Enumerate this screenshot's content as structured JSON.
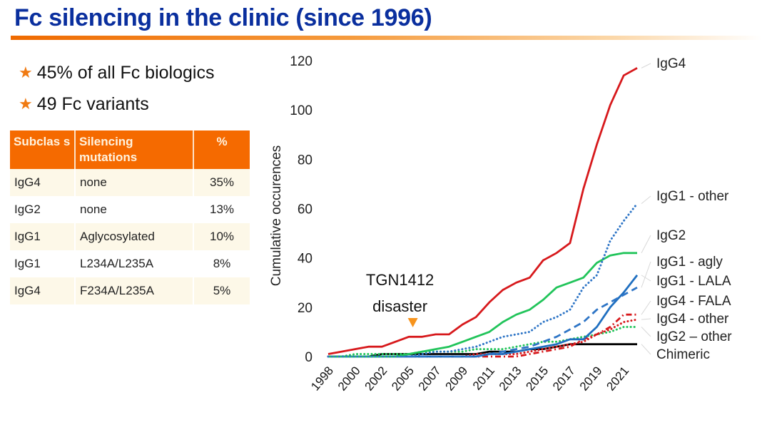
{
  "slide": {
    "title": "Fc silencing in the clinic (since 1996)",
    "bullets": [
      {
        "icon": "star-icon",
        "text": "45% of all Fc biologics"
      },
      {
        "icon": "star-icon",
        "text": "49 Fc variants"
      }
    ],
    "table": {
      "headers": [
        "Subclass",
        "Silencing mutations",
        "%"
      ],
      "header_display": [
        "Subclas s",
        "Silencing mutations",
        "%"
      ],
      "rows": [
        [
          "IgG4",
          "none",
          "35%"
        ],
        [
          "IgG2",
          "none",
          "13%"
        ],
        [
          "IgG1",
          "Aglycosylated",
          "10%"
        ],
        [
          "IgG1",
          "L234A/L235A",
          "8%"
        ],
        [
          "IgG4",
          "F234A/L235A",
          "5%"
        ]
      ],
      "header_color": "#f56a00"
    },
    "accent_colors": {
      "title": "#0a2f9e",
      "star": "#f07a12",
      "rule": "#ef6a00"
    }
  },
  "chart_data": {
    "type": "line",
    "title": "",
    "xlabel": "",
    "ylabel": "Cumulative occurences",
    "ylim": [
      0,
      120
    ],
    "yticks": [
      0,
      20,
      40,
      60,
      80,
      100,
      120
    ],
    "x_tick_labels": [
      "1998",
      "2000",
      "2002",
      "2005",
      "2007",
      "2009",
      "2011",
      "2013",
      "2015",
      "2017",
      "2019",
      "2021"
    ],
    "n_points": 24,
    "x_tick_every": 2,
    "grid": false,
    "legend": "right-end labels",
    "annotation": {
      "text_lines": [
        "TGN1412",
        "disaster"
      ],
      "marker": "down-triangle",
      "color": "#f7941d",
      "x_index": 6.3
    },
    "series": [
      {
        "name": "IgG4",
        "color": "#d7191c",
        "style": "solid",
        "values": [
          1,
          2,
          3,
          4,
          4,
          6,
          8,
          8,
          9,
          9,
          13,
          16,
          22,
          27,
          30,
          32,
          39,
          42,
          46,
          68,
          86,
          102,
          114,
          117
        ]
      },
      {
        "name": "IgG1 - other",
        "color": "#2e75c6",
        "style": "dotted",
        "values": [
          0,
          0,
          0,
          0,
          0,
          0,
          0,
          1,
          2,
          2,
          3,
          4,
          6,
          8,
          9,
          10,
          14,
          16,
          19,
          28,
          33,
          47,
          55,
          62
        ]
      },
      {
        "name": "IgG2",
        "color": "#21c45a",
        "style": "solid",
        "values": [
          0,
          0,
          0,
          0,
          0,
          0,
          1,
          2,
          3,
          4,
          6,
          8,
          10,
          14,
          17,
          19,
          23,
          28,
          30,
          32,
          38,
          41,
          42,
          42
        ]
      },
      {
        "name": "IgG1 - agly",
        "color": "#2e75c6",
        "style": "dashed",
        "values": [
          0,
          0,
          0,
          0,
          0,
          0,
          0,
          0,
          0,
          0,
          0,
          0,
          1,
          2,
          3,
          4,
          6,
          8,
          11,
          14,
          19,
          22,
          25,
          28
        ]
      },
      {
        "name": "IgG1 - LALA",
        "color": "#1f6fc0",
        "style": "solid",
        "values": [
          0,
          0,
          0,
          0,
          0,
          0,
          0,
          0,
          0,
          0,
          0,
          0,
          1,
          1,
          2,
          3,
          4,
          5,
          7,
          7,
          12,
          20,
          26,
          33
        ]
      },
      {
        "name": "IgG4 - FALA",
        "color": "#d7191c",
        "style": "dashdot",
        "values": [
          0,
          0,
          0,
          0,
          0,
          0,
          0,
          0,
          0,
          0,
          0,
          0,
          0,
          0,
          0,
          1,
          2,
          3,
          4,
          7,
          9,
          12,
          17,
          17
        ]
      },
      {
        "name": "IgG4 - other",
        "color": "#d7191c",
        "style": "dotted",
        "values": [
          0,
          0,
          0,
          0,
          0,
          0,
          0,
          0,
          0,
          0,
          0,
          1,
          1,
          1,
          1,
          2,
          3,
          4,
          5,
          6,
          9,
          11,
          14,
          15
        ]
      },
      {
        "name": "IgG2 – other",
        "color": "#21c45a",
        "style": "dotted",
        "values": [
          0,
          0,
          1,
          1,
          1,
          1,
          1,
          2,
          2,
          2,
          2,
          3,
          3,
          3,
          4,
          5,
          6,
          6,
          7,
          8,
          9,
          10,
          12,
          12
        ]
      },
      {
        "name": "Chimeric",
        "color": "#000000",
        "style": "solid",
        "values": [
          0,
          0,
          0,
          0,
          1,
          1,
          1,
          1,
          1,
          1,
          1,
          1,
          2,
          2,
          2,
          3,
          3,
          4,
          5,
          5,
          5,
          5,
          5,
          5
        ]
      }
    ],
    "end_labels": [
      {
        "series": "IgG4",
        "text": "IgG4"
      },
      {
        "series": "IgG1 - other",
        "text": "IgG1 - other"
      },
      {
        "series": "IgG2",
        "text": "IgG2"
      },
      {
        "series": "IgG1 - agly",
        "text": "IgG1 - agly"
      },
      {
        "series": "IgG1 - LALA",
        "text": "IgG1 - LALA"
      },
      {
        "series": "IgG4 - FALA",
        "text": "IgG4 - FALA"
      },
      {
        "series": "IgG4 - other",
        "text": "IgG4 - other"
      },
      {
        "series": "IgG2 – other",
        "text": "IgG2 – other"
      },
      {
        "series": "Chimeric",
        "text": "Chimeric"
      }
    ]
  }
}
